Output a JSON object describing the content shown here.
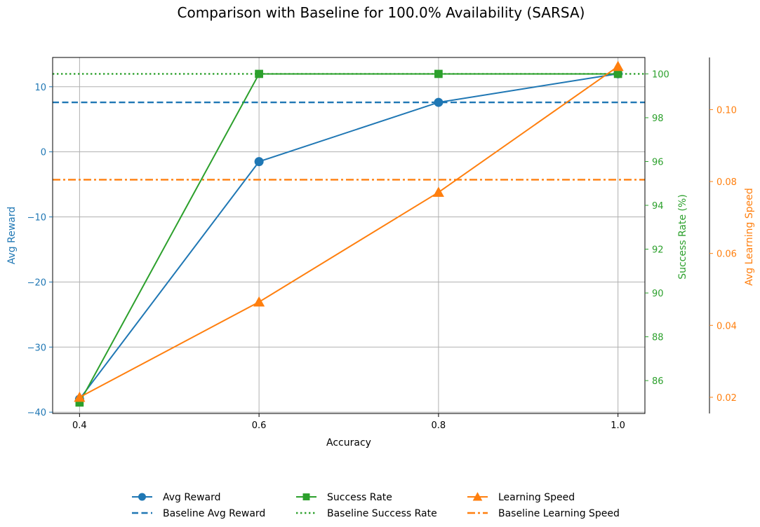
{
  "chart_data": {
    "type": "line",
    "title": "Comparison with Baseline for 100.0% Availability (SARSA)",
    "xlabel": "Accuracy",
    "x": [
      0.4,
      0.6,
      0.8,
      1.0
    ],
    "x_tick_labels": [
      "0.4",
      "0.6",
      "0.8",
      "1.0"
    ],
    "xlim": [
      0.37,
      1.03
    ],
    "grid": true,
    "legend_position": "bottom-center",
    "axes": {
      "left": {
        "label": "Avg Reward",
        "color": "#1f77b4",
        "ylim": [
          -40.2,
          14.5
        ],
        "ticks": [
          -40,
          -30,
          -20,
          -10,
          0,
          10
        ],
        "tick_labels": [
          "−40",
          "−30",
          "−20",
          "−10",
          "0",
          "10"
        ]
      },
      "right1": {
        "label": "Success Rate (%)",
        "color": "#2ca02c",
        "ylim": [
          84.5,
          100.75
        ],
        "ticks": [
          86,
          88,
          90,
          92,
          94,
          96,
          98,
          100
        ],
        "tick_labels": [
          "86",
          "88",
          "90",
          "92",
          "94",
          "96",
          "98",
          "100"
        ]
      },
      "right2": {
        "label": "Avg Learning Speed",
        "color": "#ff7f0e",
        "ylim": [
          0.0155,
          0.1145
        ],
        "ticks": [
          0.02,
          0.04,
          0.06,
          0.08,
          0.1
        ],
        "tick_labels": [
          "0.02",
          "0.04",
          "0.06",
          "0.08",
          "0.10"
        ]
      }
    },
    "series": [
      {
        "name": "Avg Reward",
        "axis": "left",
        "color": "#1f77b4",
        "marker": "circle",
        "line": "solid",
        "values": [
          -38.0,
          -1.5,
          7.6,
          12.0
        ]
      },
      {
        "name": "Success Rate",
        "axis": "right1",
        "color": "#2ca02c",
        "marker": "square",
        "line": "solid",
        "values": [
          85.0,
          100.0,
          100.0,
          100.0
        ]
      },
      {
        "name": "Learning Speed",
        "axis": "right2",
        "color": "#ff7f0e",
        "marker": "triangle",
        "line": "solid",
        "values": [
          0.02,
          0.0465,
          0.077,
          0.112
        ]
      }
    ],
    "baselines": [
      {
        "name": "Baseline Avg Reward",
        "axis": "left",
        "color": "#1f77b4",
        "style": "dashed",
        "value": 7.6
      },
      {
        "name": "Baseline Success Rate",
        "axis": "right1",
        "color": "#2ca02c",
        "style": "dotted",
        "value": 100.0
      },
      {
        "name": "Baseline Learning Speed",
        "axis": "right2",
        "color": "#ff7f0e",
        "style": "dashdot",
        "value": 0.0805
      }
    ],
    "legend": {
      "columns": [
        [
          "Avg Reward",
          "Baseline Avg Reward"
        ],
        [
          "Success Rate",
          "Baseline Success Rate"
        ],
        [
          "Learning Speed",
          "Baseline Learning Speed"
        ]
      ]
    }
  }
}
